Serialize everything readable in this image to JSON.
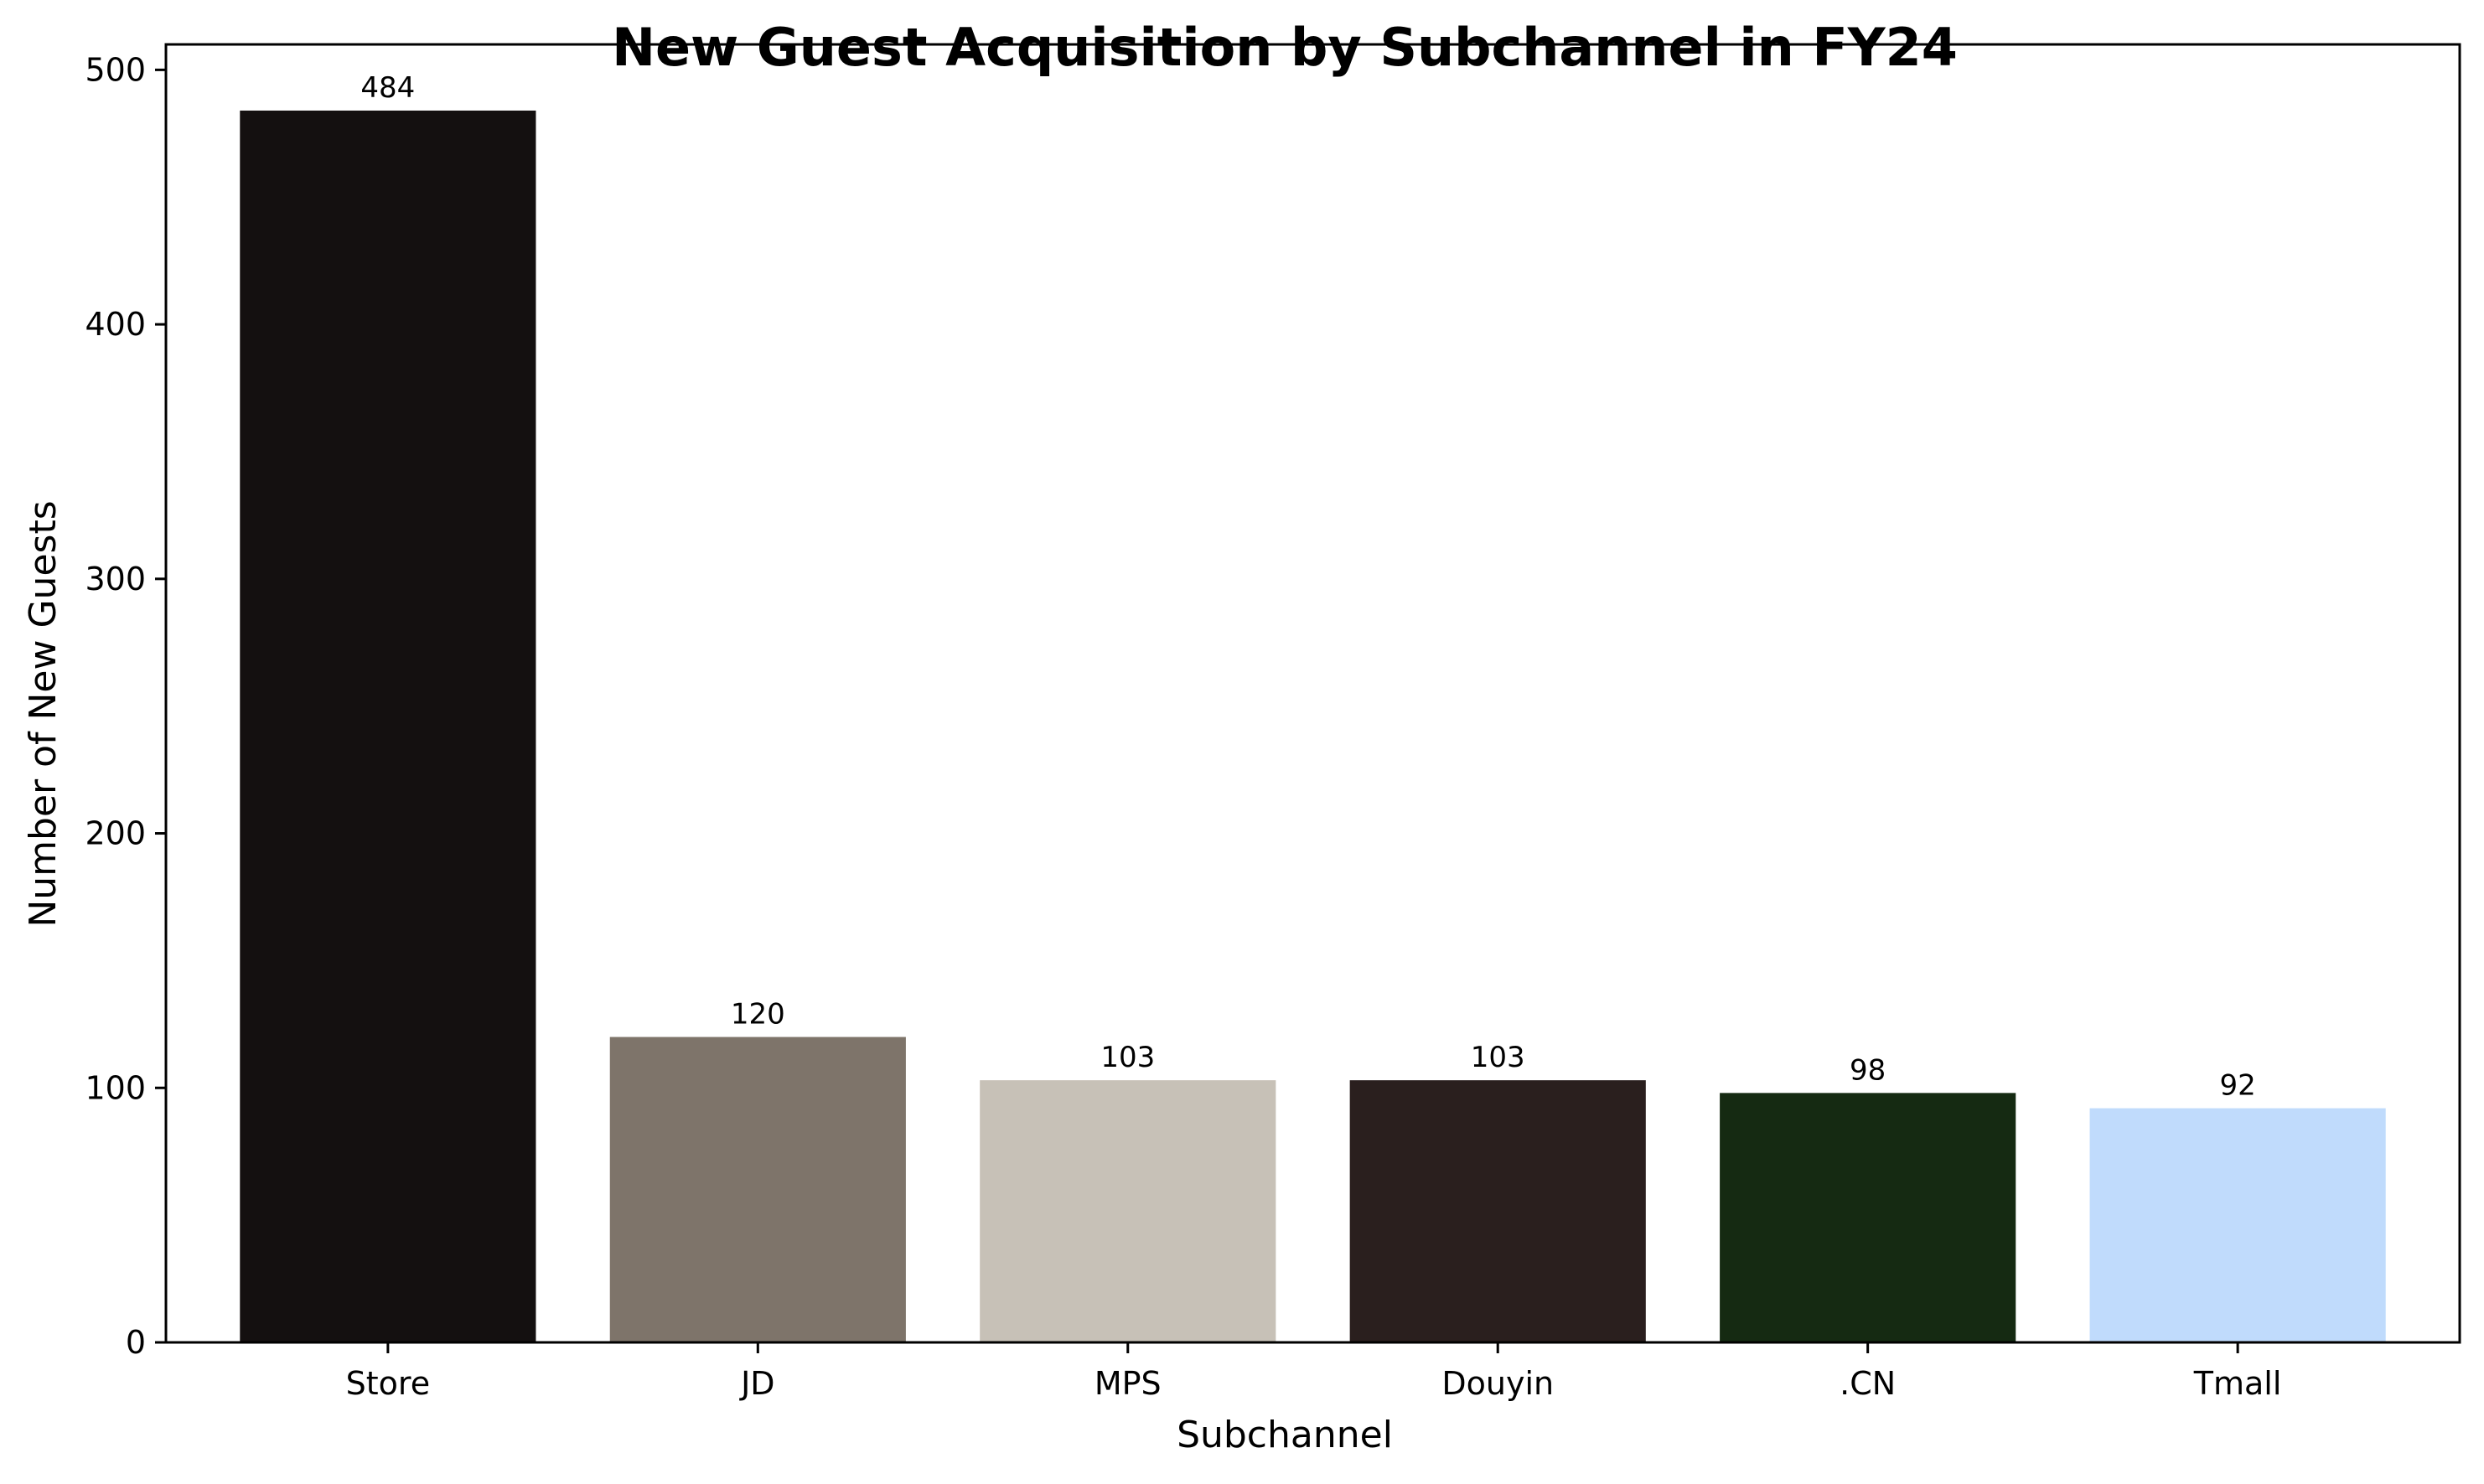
{
  "chart_data": {
    "type": "bar",
    "title": "New Guest Acquisition by Subchannel in FY24",
    "xlabel": "Subchannel",
    "ylabel": "Number of New Guests",
    "categories": [
      "Store",
      "JD",
      "MPS",
      "Douyin",
      ".CN",
      "Tmall"
    ],
    "values": [
      484,
      120,
      103,
      103,
      98,
      92
    ],
    "value_labels": [
      "484",
      "120",
      "103",
      "103",
      "98",
      "92"
    ],
    "colors": [
      "#141010",
      "#7e746a",
      "#c7c1b7",
      "#2a1f1e",
      "#152a12",
      "#c0dbfc"
    ],
    "ylim": [
      0,
      510
    ],
    "yticks": [
      0,
      100,
      200,
      300,
      400,
      500
    ],
    "ytick_labels": [
      "0",
      "100",
      "200",
      "300",
      "400",
      "500"
    ],
    "grid": false,
    "legend": false
  }
}
